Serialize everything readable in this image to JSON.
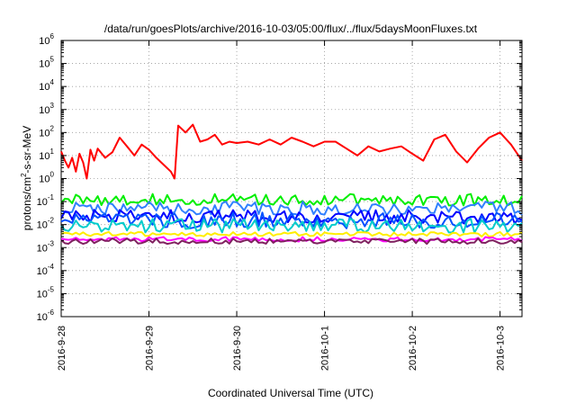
{
  "chart_data": {
    "type": "line",
    "title": "/data/run/goesPlots/archive/2016-10-03/05:00/flux/../flux/5daysMoonFluxes.txt",
    "xlabel": "Coordinated Universal Time (UTC)",
    "ylabel_parts": [
      "protons/cm",
      "2",
      "-s-sr-MeV"
    ],
    "y_scale": "log",
    "ylim": [
      1e-06,
      1000000.0
    ],
    "y_ticks": [
      {
        "base": "10",
        "exp": "-6",
        "value": 1e-06
      },
      {
        "base": "10",
        "exp": "-5",
        "value": 1e-05
      },
      {
        "base": "10",
        "exp": "-4",
        "value": 0.0001
      },
      {
        "base": "10",
        "exp": "-3",
        "value": 0.001
      },
      {
        "base": "10",
        "exp": "-2",
        "value": 0.01
      },
      {
        "base": "10",
        "exp": "-1",
        "value": 0.1
      },
      {
        "base": "10",
        "exp": "0",
        "value": 1
      },
      {
        "base": "10",
        "exp": "1",
        "value": 10.0
      },
      {
        "base": "10",
        "exp": "2",
        "value": 100.0
      },
      {
        "base": "10",
        "exp": "3",
        "value": 1000.0
      },
      {
        "base": "10",
        "exp": "4",
        "value": 10000.0
      },
      {
        "base": "10",
        "exp": "5",
        "value": 100000.0
      },
      {
        "base": "10",
        "exp": "6",
        "value": 1000000.0
      }
    ],
    "xlim": [
      "2016-09-28T00:00",
      "2016-10-03T06:00"
    ],
    "x_ticks": [
      {
        "label": "2016-9-28",
        "value": "2016-09-28T00:00"
      },
      {
        "label": "2016-9-29",
        "value": "2016-09-29T00:00"
      },
      {
        "label": "2016-9-30",
        "value": "2016-09-30T00:00"
      },
      {
        "label": "2016-10-1",
        "value": "2016-10-01T00:00"
      },
      {
        "label": "2016-10-2",
        "value": "2016-10-02T00:00"
      },
      {
        "label": "2016-10-3",
        "value": "2016-10-03T00:00"
      }
    ],
    "grid": true,
    "series": [
      {
        "color": "#ff0000",
        "width": 2,
        "x": [
          "2016-09-28T00:00",
          "2016-09-28T01:00",
          "2016-09-28T02:00",
          "2016-09-28T03:00",
          "2016-09-28T04:00",
          "2016-09-28T05:00",
          "2016-09-28T06:00",
          "2016-09-28T07:00",
          "2016-09-28T08:00",
          "2016-09-28T09:00",
          "2016-09-28T10:00",
          "2016-09-28T12:00",
          "2016-09-28T14:00",
          "2016-09-28T16:00",
          "2016-09-28T18:00",
          "2016-09-28T20:00",
          "2016-09-28T22:00",
          "2016-09-29T00:00",
          "2016-09-29T02:00",
          "2016-09-29T04:00",
          "2016-09-29T06:00",
          "2016-09-29T07:00",
          "2016-09-29T08:00",
          "2016-09-29T10:00",
          "2016-09-29T12:00",
          "2016-09-29T14:00",
          "2016-09-29T16:00",
          "2016-09-29T18:00",
          "2016-09-29T20:00",
          "2016-09-29T22:00",
          "2016-09-30T00:00",
          "2016-09-30T03:00",
          "2016-09-30T06:00",
          "2016-09-30T09:00",
          "2016-09-30T12:00",
          "2016-09-30T15:00",
          "2016-09-30T18:00",
          "2016-09-30T21:00",
          "2016-10-01T00:00",
          "2016-10-01T03:00",
          "2016-10-01T06:00",
          "2016-10-01T09:00",
          "2016-10-01T12:00",
          "2016-10-01T15:00",
          "2016-10-01T18:00",
          "2016-10-01T21:00",
          "2016-10-02T00:00",
          "2016-10-02T03:00",
          "2016-10-02T06:00",
          "2016-10-02T09:00",
          "2016-10-02T12:00",
          "2016-10-02T15:00",
          "2016-10-02T18:00",
          "2016-10-02T21:00",
          "2016-10-03T00:00",
          "2016-10-03T03:00",
          "2016-10-03T06:00"
        ],
        "y": [
          15,
          6,
          3,
          8,
          2,
          12,
          5,
          1,
          18,
          6,
          20,
          8,
          14,
          60,
          25,
          10,
          30,
          18,
          8,
          4,
          2,
          1,
          200,
          100,
          220,
          40,
          50,
          80,
          30,
          40,
          35,
          40,
          30,
          50,
          30,
          60,
          40,
          25,
          40,
          40,
          20,
          10,
          25,
          15,
          20,
          25,
          12,
          6,
          50,
          80,
          15,
          5,
          20,
          60,
          100,
          30,
          6
        ]
      },
      {
        "color": "#00ee00",
        "width": 2,
        "level": 0.12,
        "amp": 0.25
      },
      {
        "color": "#3080ff",
        "width": 2,
        "level": 0.05,
        "amp": 0.3
      },
      {
        "color": "#0000ff",
        "width": 2,
        "level": 0.022,
        "amp": 0.3
      },
      {
        "color": "#0050ff",
        "width": 2,
        "level": 0.015,
        "amp": 0.35
      },
      {
        "color": "#00cccc",
        "width": 2,
        "level": 0.009,
        "amp": 0.3
      },
      {
        "color": "#ffee00",
        "width": 2,
        "level": 0.0038,
        "amp": 0.1
      },
      {
        "color": "#ff00ff",
        "width": 2,
        "level": 0.0023,
        "amp": 0.1
      },
      {
        "color": "#802060",
        "width": 2,
        "level": 0.0019,
        "amp": 0.12
      }
    ]
  }
}
